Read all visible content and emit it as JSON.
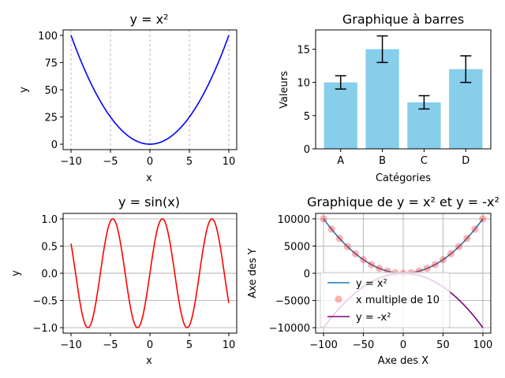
{
  "chart_data": [
    {
      "id": "c1",
      "type": "line",
      "title": "y = x²",
      "xlabel": "x",
      "ylabel": "y",
      "xlim": [
        -11,
        11
      ],
      "ylim": [
        -5,
        105
      ],
      "xticks": [
        -10,
        -5,
        0,
        5,
        10
      ],
      "yticks": [
        0,
        25,
        50,
        75,
        100
      ],
      "xtick_labels": [
        "−10",
        "−5",
        "0",
        "5",
        "10"
      ],
      "ytick_labels": [
        "0",
        "25",
        "50",
        "75",
        "100"
      ],
      "grid": "vertical dashed",
      "series": [
        {
          "function": "x^2",
          "domain": [
            -10,
            10
          ],
          "color": "#0000ff"
        }
      ]
    },
    {
      "id": "c2",
      "type": "bar",
      "title": "Graphique à barres",
      "xlabel": "Catégories",
      "ylabel": "Valeurs",
      "categories": [
        "A",
        "B",
        "C",
        "D"
      ],
      "values": [
        10,
        15,
        7,
        12
      ],
      "errors": [
        1,
        2,
        1,
        2
      ],
      "ylim": [
        0,
        17.9
      ],
      "yticks": [
        0,
        5,
        10,
        15
      ],
      "ytick_labels": [
        "0",
        "5",
        "10",
        "15"
      ],
      "grid": "off",
      "color": "#87ceeb"
    },
    {
      "id": "c3",
      "type": "line",
      "title": "y = sin(x)",
      "xlabel": "x",
      "ylabel": "y",
      "xlim": [
        -11,
        11
      ],
      "ylim": [
        -1.1,
        1.1
      ],
      "xticks": [
        -10,
        -5,
        0,
        5,
        10
      ],
      "yticks": [
        -1.0,
        -0.5,
        0.0,
        0.5,
        1.0
      ],
      "xtick_labels": [
        "−10",
        "−5",
        "0",
        "5",
        "10"
      ],
      "ytick_labels": [
        "−1.0",
        "−0.5",
        "0.0",
        "0.5",
        "1.0"
      ],
      "grid": "horizontal",
      "series": [
        {
          "function": "sin(x)",
          "domain": [
            -10,
            10
          ],
          "color": "#ff0000"
        }
      ]
    },
    {
      "id": "c4",
      "type": "line",
      "title": "Graphique de y = x² et y = -x²",
      "xlabel": "Axe des X",
      "ylabel": "Axe des Y",
      "xlim": [
        -110,
        110
      ],
      "ylim": [
        -11000,
        11000
      ],
      "xticks": [
        -100,
        -50,
        0,
        50,
        100
      ],
      "yticks": [
        -10000,
        -5000,
        0,
        5000,
        10000
      ],
      "xtick_labels": [
        "−100",
        "−50",
        "0",
        "50",
        "100"
      ],
      "ytick_labels": [
        "−10000",
        "−5000",
        "0",
        "5000",
        "10000"
      ],
      "grid": "on",
      "legend": "lower-left",
      "series": [
        {
          "name": "y = x²",
          "function": "x^2",
          "domain": [
            -100,
            100
          ],
          "color": "#1f77b4",
          "style": "line"
        },
        {
          "name": "x multiple de 10",
          "x": [
            -100,
            -90,
            -80,
            -70,
            -60,
            -50,
            -40,
            -30,
            -20,
            -10,
            0,
            10,
            20,
            30,
            40,
            50,
            60,
            70,
            80,
            90,
            100
          ],
          "y": [
            10000,
            8100,
            6400,
            4900,
            3600,
            2500,
            1600,
            900,
            400,
            100,
            0,
            100,
            400,
            900,
            1600,
            2500,
            3600,
            4900,
            6400,
            8100,
            10000
          ],
          "color": "#ff0000",
          "style": "markers"
        },
        {
          "name": "y = -x²",
          "function": "-x^2",
          "domain": [
            -100,
            100
          ],
          "color": "#800080",
          "style": "line"
        }
      ]
    }
  ]
}
